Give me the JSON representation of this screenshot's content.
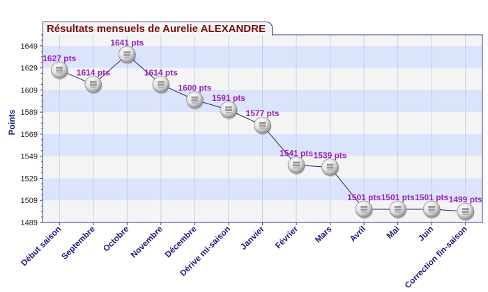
{
  "colors": {
    "title_text": "#7a0d0d",
    "frame": "#3a3a80",
    "band_blue": "#dce4fb",
    "band_gray": "#f4f4f4",
    "line": "#202070",
    "data_label": "#9922bb",
    "axis_label": "#1a1a80"
  },
  "chart_data": {
    "type": "line",
    "title": "Résultats mensuels de Aurelie ALEXANDRE",
    "xlabel": "",
    "ylabel": "Points",
    "ylim": [
      1489,
      1659
    ],
    "yticks": [
      1489,
      1509,
      1529,
      1549,
      1569,
      1589,
      1609,
      1629,
      1649
    ],
    "grid": true,
    "marker": "ball-icon",
    "categories": [
      "Début saison",
      "Septembre",
      "Octobre",
      "Novembre",
      "Décembre",
      "Dérive mi-saison",
      "Janvier",
      "Février",
      "Mars",
      "Avril",
      "Mai",
      "Juin",
      "Correction fin-saison"
    ],
    "series": [
      {
        "values": [
          1627,
          1614,
          1641,
          1614,
          1600,
          1591,
          1577,
          1541,
          1539,
          1501,
          1501,
          1501,
          1499
        ],
        "labels": [
          "1627 pts",
          "1614 pts",
          "1641 pts",
          "1614 pts",
          "1600 pts",
          "1591 pts",
          "1577 pts",
          "1541 pts",
          "1539 pts",
          "1501 pts",
          "1501 pts",
          "1501 pts",
          "1499 pts"
        ]
      }
    ]
  }
}
